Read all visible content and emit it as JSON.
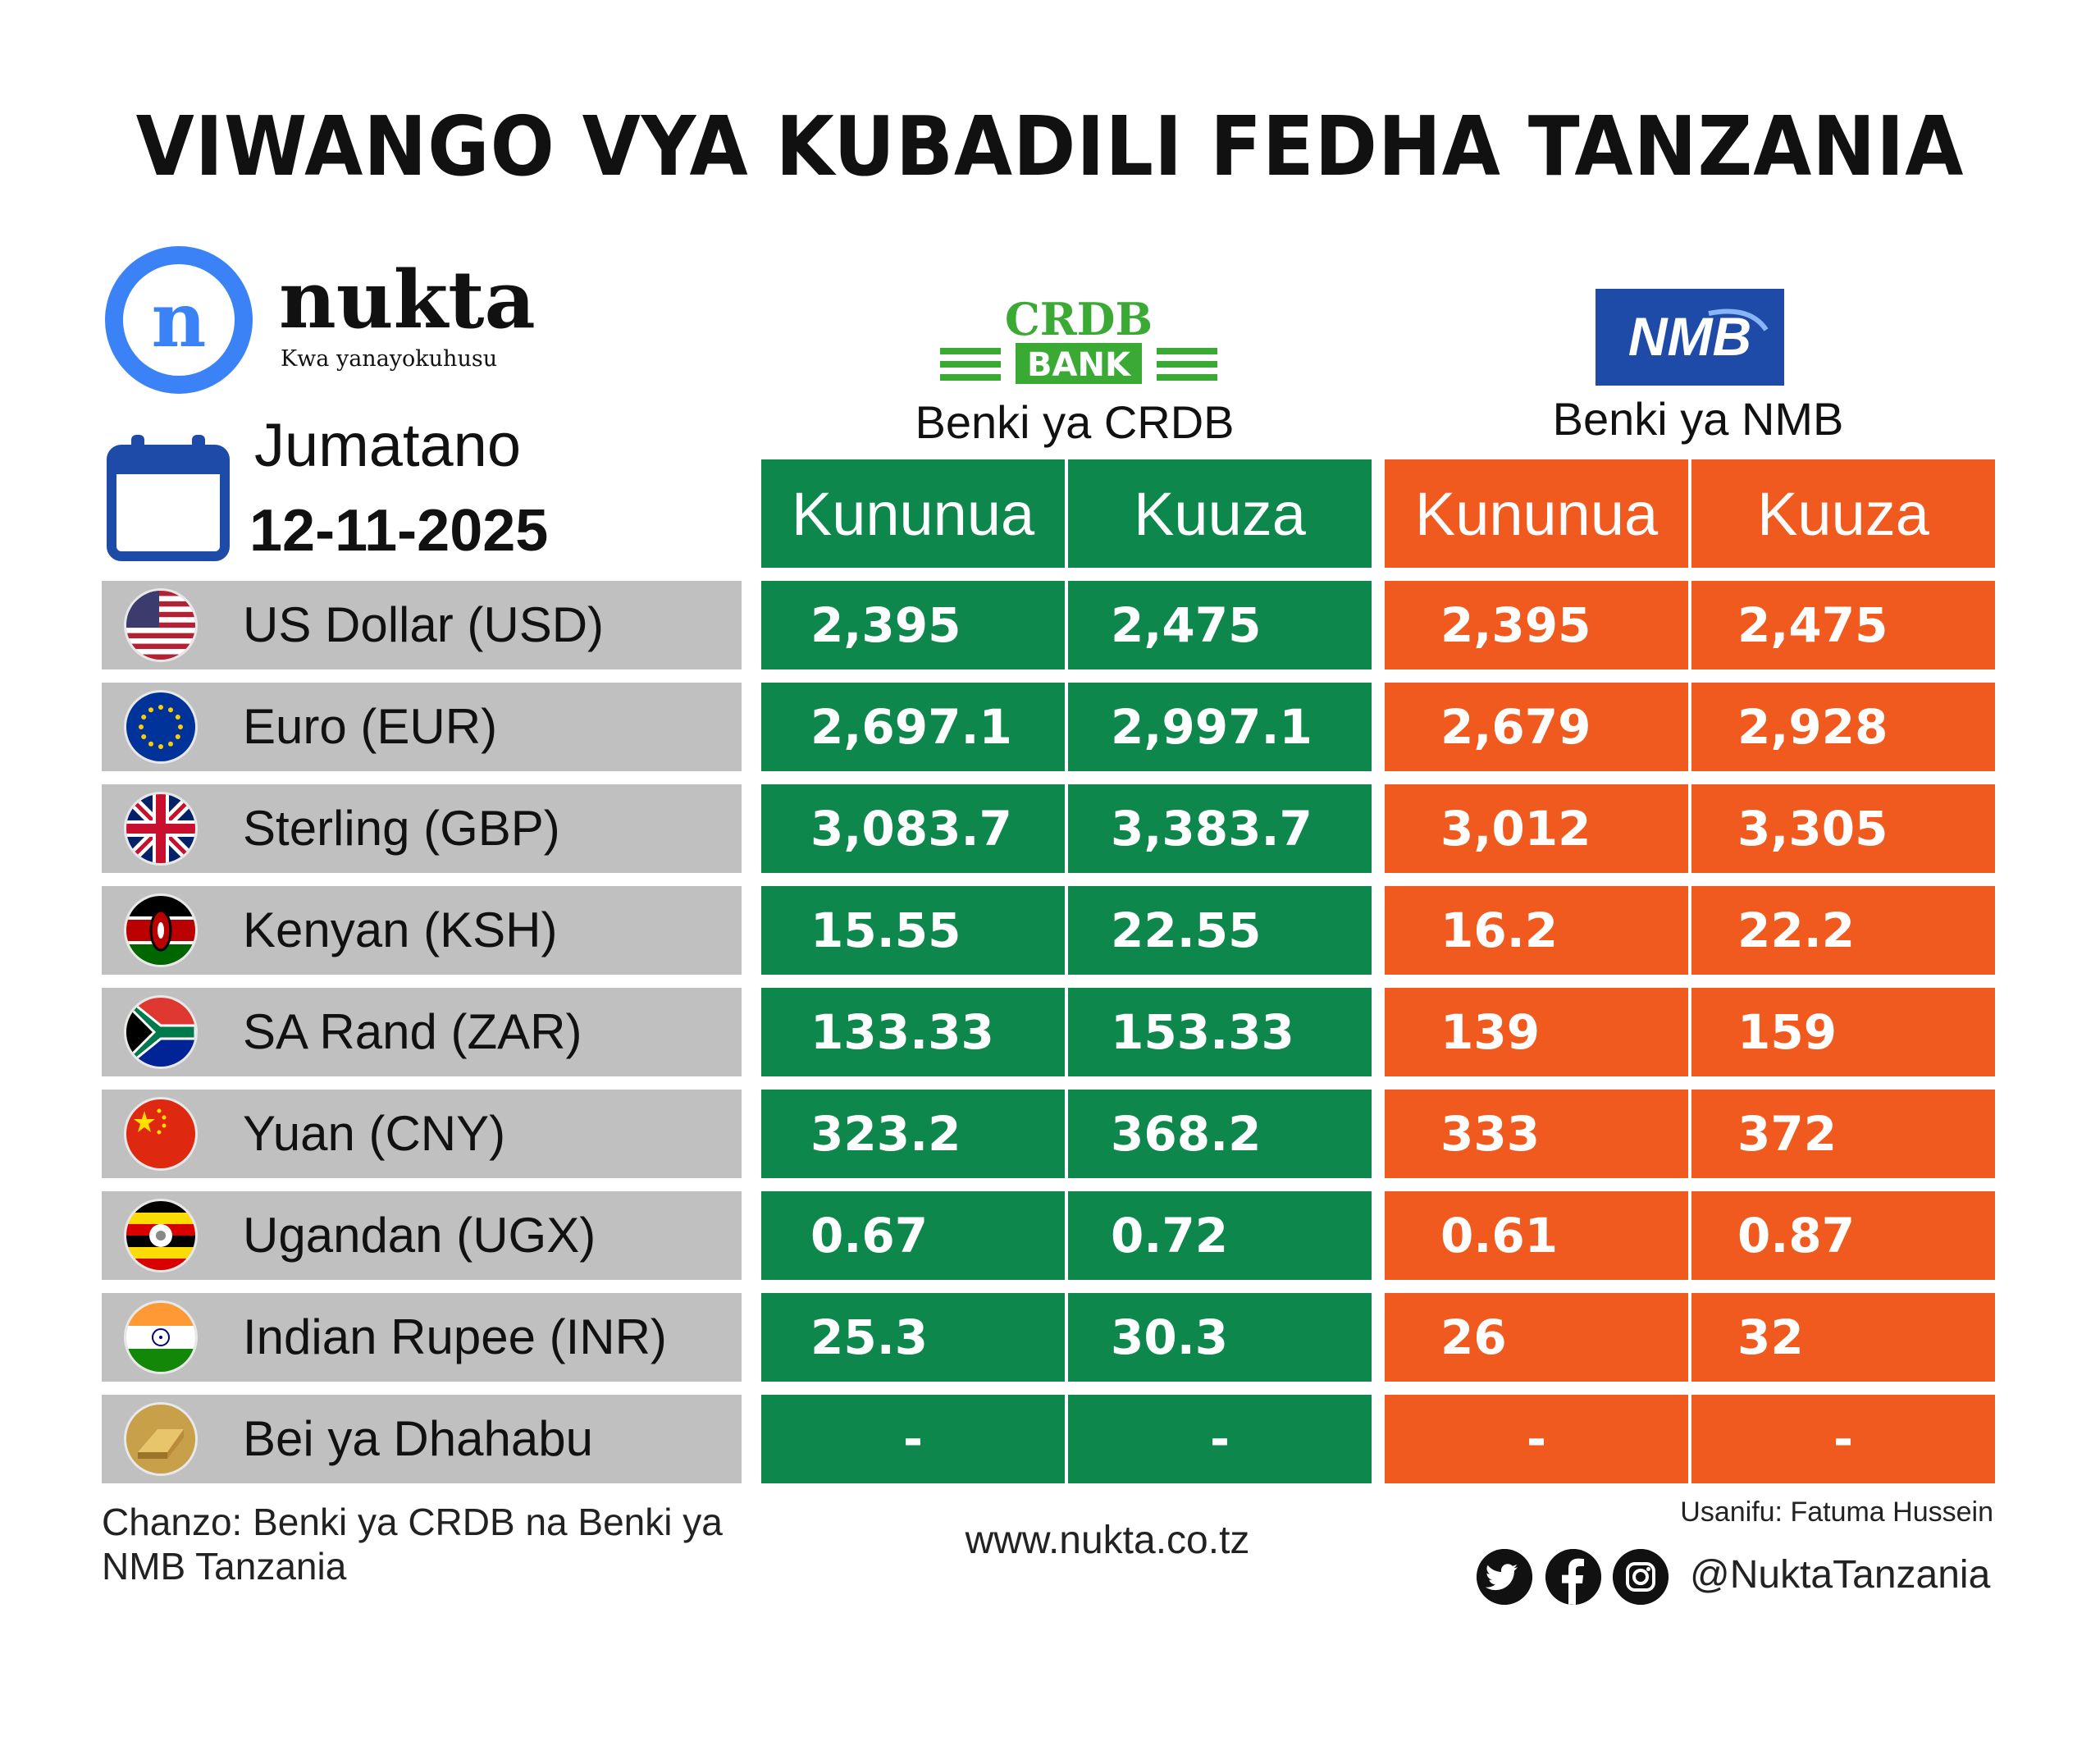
{
  "title": "VIWANGO VYA KUBADILI FEDHA TANZANIA",
  "logo": {
    "letter": "n",
    "name": "nukta",
    "tagline": "Kwa yanayokuhusu"
  },
  "day": "Jumatano",
  "date": "12-11-2025",
  "banks": {
    "crdb": {
      "logo_top": "CRDB",
      "logo_bottom": "BANK",
      "name": "Benki ya CRDB",
      "buy_label": "Kununua",
      "sell_label": "Kuuza",
      "color": "#0e874c"
    },
    "nmb": {
      "logo_text": "NMB",
      "name": "Benki ya NMB",
      "buy_label": "Kununua",
      "sell_label": "Kuuza",
      "color": "#f05a1f"
    }
  },
  "rows": [
    {
      "label": "US Dollar (USD)",
      "flag": "usa-flag-icon",
      "crdb_buy": "2,395",
      "crdb_sell": "2,475",
      "nmb_buy": "2,395",
      "nmb_sell": "2,475"
    },
    {
      "label": "Euro (EUR)",
      "flag": "eu-flag-icon",
      "crdb_buy": "2,697.1",
      "crdb_sell": "2,997.1",
      "nmb_buy": "2,679",
      "nmb_sell": "2,928"
    },
    {
      "label": "Sterling (GBP)",
      "flag": "uk-flag-icon",
      "crdb_buy": "3,083.7",
      "crdb_sell": "3,383.7",
      "nmb_buy": "3,012",
      "nmb_sell": "3,305"
    },
    {
      "label": "Kenyan (KSH)",
      "flag": "kenya-flag-icon",
      "crdb_buy": "15.55",
      "crdb_sell": "22.55",
      "nmb_buy": "16.2",
      "nmb_sell": "22.2"
    },
    {
      "label": "SA Rand (ZAR)",
      "flag": "south-africa-flag-icon",
      "crdb_buy": "133.33",
      "crdb_sell": "153.33",
      "nmb_buy": "139",
      "nmb_sell": "159"
    },
    {
      "label": "Yuan (CNY)",
      "flag": "china-flag-icon",
      "crdb_buy": "323.2",
      "crdb_sell": "368.2",
      "nmb_buy": "333",
      "nmb_sell": "372"
    },
    {
      "label": "Ugandan (UGX)",
      "flag": "uganda-flag-icon",
      "crdb_buy": "0.67",
      "crdb_sell": "0.72",
      "nmb_buy": "0.61",
      "nmb_sell": "0.87"
    },
    {
      "label": "Indian Rupee (INR)",
      "flag": "india-flag-icon",
      "crdb_buy": "25.3",
      "crdb_sell": "30.3",
      "nmb_buy": "26",
      "nmb_sell": "32"
    },
    {
      "label": "Bei ya Dhahabu",
      "flag": "gold-icon",
      "crdb_buy": "-",
      "crdb_sell": "-",
      "nmb_buy": "-",
      "nmb_sell": "-"
    }
  ],
  "footer": {
    "source": "Chanzo: Benki ya CRDB na Benki ya NMB Tanzania",
    "website": "www.nukta.co.tz",
    "designer": "Usanifu: Fatuma Hussein",
    "handle": "@NuktaTanzania",
    "social_icons": [
      "twitter-icon",
      "facebook-icon",
      "instagram-icon"
    ]
  }
}
